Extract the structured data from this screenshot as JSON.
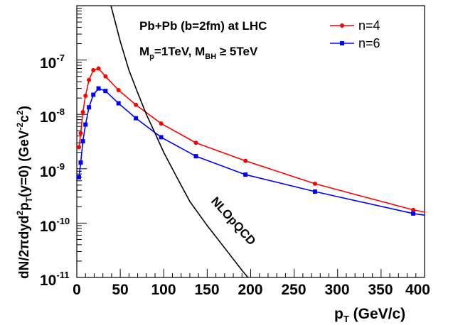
{
  "chart_data": {
    "type": "line",
    "x_axis": {
      "title_main": "p",
      "title_sub": "T",
      "title_unit": " (GeV/c)",
      "range": [
        0,
        400
      ],
      "scale": "linear",
      "ticks": [
        "0",
        "50",
        "100",
        "150",
        "200",
        "250",
        "300",
        "350",
        "400"
      ]
    },
    "y_axis": {
      "title_main": "dN/2πdyd",
      "title_sup": "2",
      "title_p": "p",
      "title_sub": "T",
      "title_mid": "(y=0) (GeV",
      "title_sup2": "-2",
      "title_c": "c",
      "title_sup3": "2",
      "title_end": ")",
      "range": [
        1e-11,
        1e-06
      ],
      "scale": "log",
      "ticks": [
        {
          "base": "10",
          "exp": "-11"
        },
        {
          "base": "10",
          "exp": "-10"
        },
        {
          "base": "10",
          "exp": "-9"
        },
        {
          "base": "10",
          "exp": "-8"
        },
        {
          "base": "10",
          "exp": "-7"
        }
      ]
    },
    "annotations": {
      "line1": "Pb+Pb (b=2fm) at LHC",
      "line2_m": "M",
      "line2_msub": "p",
      "line2_a": "=1TeV, M",
      "line2_bsub": "BH",
      "line2_b": " ≥ 5TeV",
      "curve_label": "NLOpQCD"
    },
    "series": [
      {
        "name": "n=4",
        "color": "#ff0000",
        "marker": "circle",
        "x": [
          2.5,
          4.5,
          7,
          10,
          14,
          19,
          25,
          33,
          48,
          68,
          97,
          137,
          194,
          274,
          387,
          400
        ],
        "y": [
          2.5e-09,
          4.5e-09,
          1.1e-08,
          2.2e-08,
          4.3e-08,
          6.5e-08,
          7e-08,
          5e-08,
          2.8e-08,
          1.5e-08,
          6.8e-09,
          3e-09,
          1.4e-09,
          5.3e-10,
          1.75e-10,
          1.6e-10
        ]
      },
      {
        "name": "n=6",
        "color": "#0000ff",
        "marker": "square",
        "x": [
          2.5,
          4.5,
          7,
          10,
          14,
          19,
          25,
          33,
          48,
          68,
          97,
          137,
          194,
          274,
          387,
          400
        ],
        "y": [
          7e-10,
          1.3e-09,
          3.2e-09,
          6.5e-09,
          1.35e-08,
          2.3e-08,
          3e-08,
          2.7e-08,
          1.6e-08,
          8.5e-09,
          3.8e-09,
          1.7e-09,
          7.8e-10,
          3.8e-10,
          1.5e-10,
          1.4e-10
        ]
      },
      {
        "name": "NLOpQCD",
        "color": "#000000",
        "marker": "none",
        "x": [
          38,
          50,
          60,
          70,
          80,
          90,
          100,
          115,
          130,
          150,
          170,
          190,
          205
        ],
        "y": [
          1.2e-06,
          2.2e-07,
          6.5e-08,
          2.5e-08,
          1e-08,
          4.5e-09,
          2e-09,
          7e-10,
          2.5e-10,
          9e-11,
          3.5e-11,
          1.35e-11,
          7e-12
        ]
      }
    ],
    "legend": {
      "placement": "top-right",
      "entries": [
        "n=4",
        "n=6"
      ]
    }
  }
}
